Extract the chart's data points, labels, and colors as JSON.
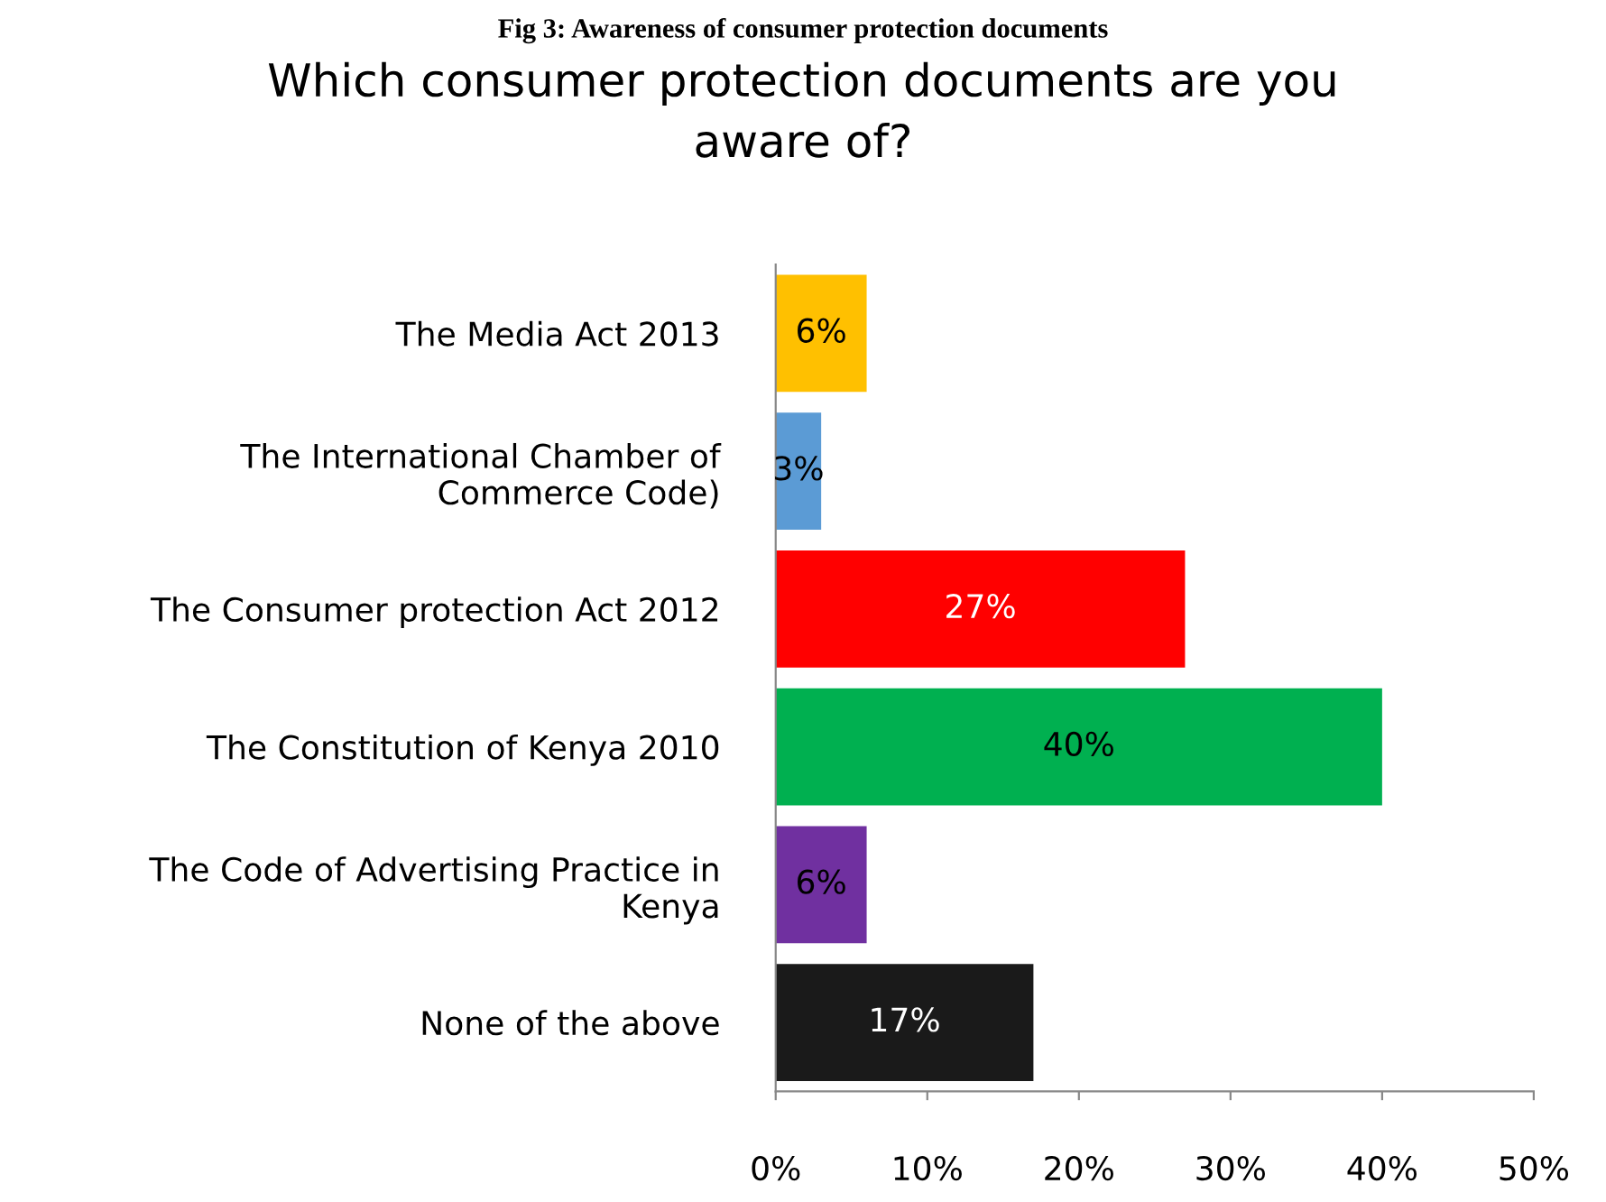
{
  "chart_data": {
    "type": "bar",
    "orientation": "horizontal",
    "title": "Which consumer protection documents are you\naware of?",
    "annotations": [
      "Fig 3: Awareness of consumer protection documents"
    ],
    "categories": [
      "The Media Act 2013",
      "The International Chamber of\nCommerce Code)",
      "The Consumer protection Act 2012",
      "The Constitution of Kenya 2010",
      "The Code of Advertising Practice in\nKenya",
      "None of the above"
    ],
    "values": [
      6,
      3,
      27,
      40,
      6,
      17
    ],
    "colors": [
      "#ffc000",
      "#5b9bd5",
      "#ff0000",
      "#00b050",
      "#7030a0",
      "#1a1a1a"
    ],
    "value_labels": [
      "6%",
      "3%",
      "27%",
      "40%",
      "6%",
      "17%"
    ],
    "xlim": [
      0,
      50
    ],
    "xticks": [
      {
        "value": 0,
        "label": "0%"
      },
      {
        "value": 10,
        "label": "10%"
      },
      {
        "value": 20,
        "label": "20%"
      },
      {
        "value": 30,
        "label": "30%"
      },
      {
        "value": 40,
        "label": "40%"
      },
      {
        "value": 50,
        "label": "50%"
      }
    ],
    "grid": false,
    "legend": false
  }
}
